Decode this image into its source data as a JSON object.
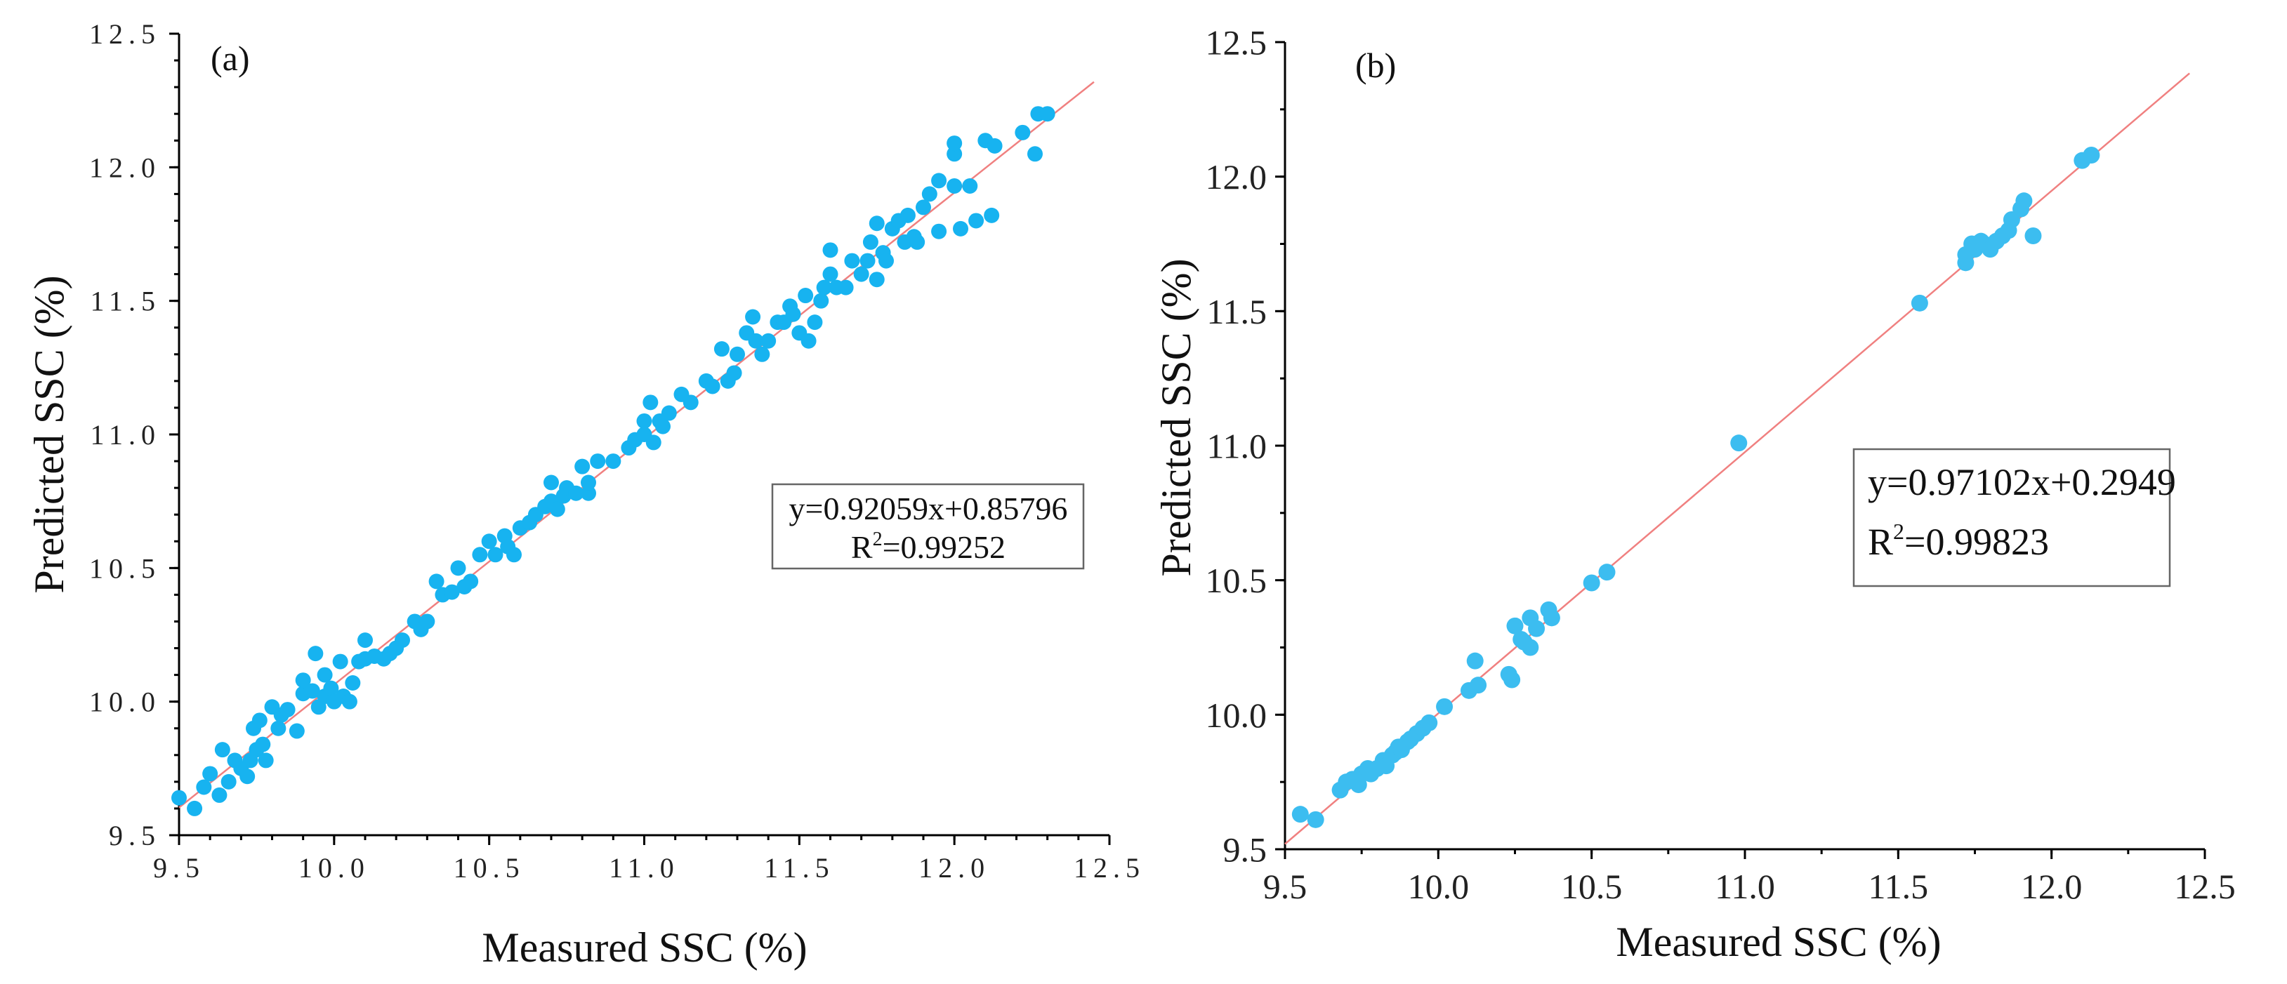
{
  "colors": {
    "point": "#17b3f0",
    "point_b": "#3cbdf0",
    "fit_line": "#f08080"
  },
  "chart_data": [
    {
      "type": "scatter",
      "panel": "(a)",
      "xlabel": "Measured SSC (%)",
      "ylabel": "Predicted SSC (%)",
      "xlim": [
        9.5,
        12.5
      ],
      "ylim": [
        9.5,
        12.5
      ],
      "x_ticks": [
        "9.5",
        "10.0",
        "10.5",
        "11.0",
        "11.5",
        "12.0",
        "12.5"
      ],
      "y_ticks": [
        "9.5",
        "10.0",
        "10.5",
        "11.0",
        "11.5",
        "12.0",
        "12.5"
      ],
      "fit": {
        "slope": 0.92059,
        "intercept": 0.85796
      },
      "equation": "y=0.92059x+0.85796",
      "r2_prefix": "R",
      "r2_sup": "2",
      "r2_value": "=0.99252",
      "points": [
        [
          9.5,
          9.64
        ],
        [
          9.55,
          9.6
        ],
        [
          9.58,
          9.68
        ],
        [
          9.6,
          9.73
        ],
        [
          9.63,
          9.65
        ],
        [
          9.64,
          9.82
        ],
        [
          9.66,
          9.7
        ],
        [
          9.68,
          9.78
        ],
        [
          9.7,
          9.75
        ],
        [
          9.72,
          9.72
        ],
        [
          9.73,
          9.78
        ],
        [
          9.74,
          9.9
        ],
        [
          9.75,
          9.82
        ],
        [
          9.76,
          9.93
        ],
        [
          9.77,
          9.84
        ],
        [
          9.78,
          9.78
        ],
        [
          9.8,
          9.98
        ],
        [
          9.82,
          9.9
        ],
        [
          9.83,
          9.95
        ],
        [
          9.85,
          9.97
        ],
        [
          9.88,
          9.89
        ],
        [
          9.9,
          10.03
        ],
        [
          9.9,
          10.08
        ],
        [
          9.93,
          10.04
        ],
        [
          9.94,
          10.18
        ],
        [
          9.95,
          9.98
        ],
        [
          9.97,
          10.02
        ],
        [
          9.97,
          10.1
        ],
        [
          9.99,
          10.05
        ],
        [
          10.0,
          10.0
        ],
        [
          10.02,
          10.15
        ],
        [
          10.03,
          10.02
        ],
        [
          10.05,
          10.0
        ],
        [
          10.06,
          10.07
        ],
        [
          10.08,
          10.15
        ],
        [
          10.1,
          10.16
        ],
        [
          10.1,
          10.23
        ],
        [
          10.13,
          10.17
        ],
        [
          10.16,
          10.16
        ],
        [
          10.18,
          10.18
        ],
        [
          10.2,
          10.2
        ],
        [
          10.22,
          10.23
        ],
        [
          10.26,
          10.3
        ],
        [
          10.28,
          10.27
        ],
        [
          10.3,
          10.3
        ],
        [
          10.33,
          10.45
        ],
        [
          10.35,
          10.4
        ],
        [
          10.38,
          10.41
        ],
        [
          10.4,
          10.5
        ],
        [
          10.42,
          10.43
        ],
        [
          10.44,
          10.45
        ],
        [
          10.47,
          10.55
        ],
        [
          10.5,
          10.6
        ],
        [
          10.52,
          10.55
        ],
        [
          10.55,
          10.62
        ],
        [
          10.56,
          10.58
        ],
        [
          10.58,
          10.55
        ],
        [
          10.6,
          10.65
        ],
        [
          10.63,
          10.67
        ],
        [
          10.65,
          10.7
        ],
        [
          10.68,
          10.73
        ],
        [
          10.7,
          10.82
        ],
        [
          10.7,
          10.75
        ],
        [
          10.72,
          10.72
        ],
        [
          10.74,
          10.77
        ],
        [
          10.75,
          10.8
        ],
        [
          10.78,
          10.78
        ],
        [
          10.8,
          10.88
        ],
        [
          10.82,
          10.78
        ],
        [
          10.82,
          10.82
        ],
        [
          10.85,
          10.9
        ],
        [
          10.9,
          10.9
        ],
        [
          10.95,
          10.95
        ],
        [
          10.97,
          10.98
        ],
        [
          11.0,
          11.05
        ],
        [
          11.0,
          11.0
        ],
        [
          11.02,
          11.12
        ],
        [
          11.03,
          10.97
        ],
        [
          11.05,
          11.05
        ],
        [
          11.06,
          11.03
        ],
        [
          11.08,
          11.08
        ],
        [
          11.12,
          11.15
        ],
        [
          11.15,
          11.12
        ],
        [
          11.2,
          11.2
        ],
        [
          11.22,
          11.18
        ],
        [
          11.25,
          11.32
        ],
        [
          11.27,
          11.2
        ],
        [
          11.29,
          11.23
        ],
        [
          11.3,
          11.3
        ],
        [
          11.33,
          11.38
        ],
        [
          11.35,
          11.44
        ],
        [
          11.36,
          11.35
        ],
        [
          11.38,
          11.3
        ],
        [
          11.4,
          11.35
        ],
        [
          11.43,
          11.42
        ],
        [
          11.45,
          11.42
        ],
        [
          11.47,
          11.48
        ],
        [
          11.48,
          11.45
        ],
        [
          11.5,
          11.38
        ],
        [
          11.52,
          11.52
        ],
        [
          11.53,
          11.35
        ],
        [
          11.55,
          11.42
        ],
        [
          11.57,
          11.5
        ],
        [
          11.58,
          11.55
        ],
        [
          11.6,
          11.6
        ],
        [
          11.6,
          11.69
        ],
        [
          11.62,
          11.55
        ],
        [
          11.65,
          11.55
        ],
        [
          11.67,
          11.65
        ],
        [
          11.7,
          11.6
        ],
        [
          11.72,
          11.65
        ],
        [
          11.73,
          11.72
        ],
        [
          11.75,
          11.79
        ],
        [
          11.75,
          11.58
        ],
        [
          11.77,
          11.68
        ],
        [
          11.78,
          11.65
        ],
        [
          11.8,
          11.77
        ],
        [
          11.82,
          11.8
        ],
        [
          11.84,
          11.72
        ],
        [
          11.85,
          11.82
        ],
        [
          11.87,
          11.74
        ],
        [
          11.88,
          11.72
        ],
        [
          11.9,
          11.85
        ],
        [
          11.92,
          11.9
        ],
        [
          11.95,
          11.95
        ],
        [
          11.95,
          11.76
        ],
        [
          12.0,
          12.05
        ],
        [
          12.0,
          11.93
        ],
        [
          12.0,
          12.09
        ],
        [
          12.02,
          11.77
        ],
        [
          12.05,
          11.93
        ],
        [
          12.07,
          11.8
        ],
        [
          12.1,
          12.1
        ],
        [
          12.12,
          11.82
        ],
        [
          12.13,
          12.08
        ],
        [
          12.22,
          12.13
        ],
        [
          12.26,
          12.05
        ],
        [
          12.27,
          12.2
        ],
        [
          12.3,
          12.2
        ]
      ]
    },
    {
      "type": "scatter",
      "panel": "(b)",
      "xlabel": "Measured SSC (%)",
      "ylabel": "Predicted SSC (%)",
      "xlim": [
        9.5,
        12.5
      ],
      "ylim": [
        9.5,
        12.5
      ],
      "x_ticks": [
        "9.5",
        "10.0",
        "10.5",
        "11.0",
        "11.5",
        "12.0",
        "12.5"
      ],
      "y_ticks": [
        "9.5",
        "10.0",
        "10.5",
        "11.0",
        "11.5",
        "12.0",
        "12.5"
      ],
      "fit": {
        "slope": 0.97102,
        "intercept": 0.2949
      },
      "equation": "y=0.97102x+0.2949",
      "r2_prefix": "R",
      "r2_sup": "2",
      "r2_value": "=0.99823",
      "points": [
        [
          9.55,
          9.63
        ],
        [
          9.6,
          9.61
        ],
        [
          9.68,
          9.72
        ],
        [
          9.7,
          9.75
        ],
        [
          9.72,
          9.76
        ],
        [
          9.74,
          9.74
        ],
        [
          9.75,
          9.78
        ],
        [
          9.77,
          9.8
        ],
        [
          9.78,
          9.78
        ],
        [
          9.8,
          9.8
        ],
        [
          9.82,
          9.83
        ],
        [
          9.83,
          9.81
        ],
        [
          9.85,
          9.85
        ],
        [
          9.86,
          9.86
        ],
        [
          9.87,
          9.88
        ],
        [
          9.88,
          9.87
        ],
        [
          9.9,
          9.9
        ],
        [
          9.91,
          9.91
        ],
        [
          9.93,
          9.93
        ],
        [
          9.95,
          9.95
        ],
        [
          9.97,
          9.97
        ],
        [
          10.02,
          10.03
        ],
        [
          10.1,
          10.09
        ],
        [
          10.12,
          10.2
        ],
        [
          10.13,
          10.11
        ],
        [
          10.23,
          10.15
        ],
        [
          10.24,
          10.13
        ],
        [
          10.25,
          10.33
        ],
        [
          10.27,
          10.28
        ],
        [
          10.28,
          10.27
        ],
        [
          10.3,
          10.36
        ],
        [
          10.3,
          10.25
        ],
        [
          10.32,
          10.32
        ],
        [
          10.36,
          10.39
        ],
        [
          10.37,
          10.36
        ],
        [
          10.5,
          10.49
        ],
        [
          10.55,
          10.53
        ],
        [
          10.98,
          11.01
        ],
        [
          11.57,
          11.53
        ],
        [
          11.72,
          11.68
        ],
        [
          11.72,
          11.71
        ],
        [
          11.74,
          11.75
        ],
        [
          11.75,
          11.73
        ],
        [
          11.77,
          11.76
        ],
        [
          11.78,
          11.75
        ],
        [
          11.8,
          11.73
        ],
        [
          11.82,
          11.76
        ],
        [
          11.84,
          11.78
        ],
        [
          11.86,
          11.8
        ],
        [
          11.87,
          11.84
        ],
        [
          11.9,
          11.88
        ],
        [
          11.91,
          11.91
        ],
        [
          11.94,
          11.78
        ],
        [
          12.1,
          12.06
        ],
        [
          12.13,
          12.08
        ]
      ]
    }
  ]
}
